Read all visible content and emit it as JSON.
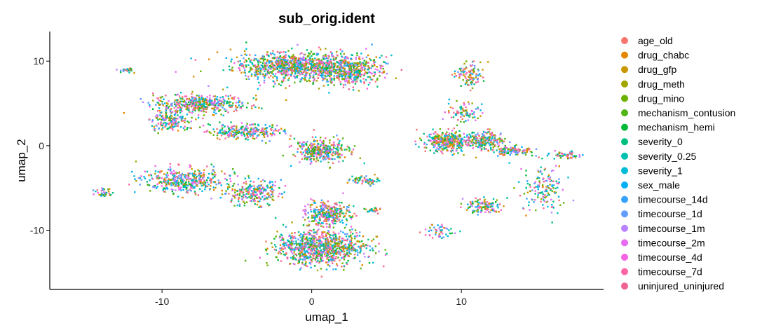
{
  "chart_data": {
    "type": "scatter",
    "title": "sub_orig.ident",
    "xlabel": "umap_1",
    "ylabel": "umap_2",
    "xlim": [
      -17.5,
      19.5
    ],
    "ylim": [
      -17,
      13.5
    ],
    "x_ticks": [
      -10,
      0,
      10
    ],
    "y_ticks": [
      10,
      0,
      -10
    ],
    "grid": false,
    "legend_position": "right",
    "legend": [
      {
        "name": "age_old",
        "color": "#F8766D"
      },
      {
        "name": "drug_chabc",
        "color": "#E58700"
      },
      {
        "name": "drug_gfp",
        "color": "#C99800"
      },
      {
        "name": "drug_meth",
        "color": "#A3A500"
      },
      {
        "name": "drug_mino",
        "color": "#6BB100"
      },
      {
        "name": "mechanism_contusion",
        "color": "#52B415"
      },
      {
        "name": "mechanism_hemi",
        "color": "#00BA38"
      },
      {
        "name": "severity_0",
        "color": "#00BF7D"
      },
      {
        "name": "severity_0.25",
        "color": "#00C0AF"
      },
      {
        "name": "severity_1",
        "color": "#00BCD8"
      },
      {
        "name": "sex_male",
        "color": "#00B0F6"
      },
      {
        "name": "timecourse_14d",
        "color": "#35A2FF"
      },
      {
        "name": "timecourse_1d",
        "color": "#619CFF"
      },
      {
        "name": "timecourse_1m",
        "color": "#B983FF"
      },
      {
        "name": "timecourse_2m",
        "color": "#E76BF3"
      },
      {
        "name": "timecourse_4d",
        "color": "#F564E3"
      },
      {
        "name": "timecourse_7d",
        "color": "#FF67A4"
      },
      {
        "name": "uninjured_uninjured",
        "color": "#F0628F"
      }
    ],
    "clusters": [
      {
        "center": [
          -1.5,
          9.5
        ],
        "spread": [
          3.8,
          1.6
        ],
        "n": 900
      },
      {
        "center": [
          2.5,
          9.0
        ],
        "spread": [
          2.2,
          1.8
        ],
        "n": 500
      },
      {
        "center": [
          -7.5,
          5.0
        ],
        "spread": [
          3.0,
          1.2
        ],
        "n": 450
      },
      {
        "center": [
          -4.5,
          1.8
        ],
        "spread": [
          2.5,
          0.9
        ],
        "n": 250
      },
      {
        "center": [
          -9.5,
          3.0
        ],
        "spread": [
          1.2,
          1.2
        ],
        "n": 160
      },
      {
        "center": [
          -8.5,
          -4.0
        ],
        "spread": [
          2.8,
          1.4
        ],
        "n": 400
      },
      {
        "center": [
          -4.0,
          -5.5
        ],
        "spread": [
          2.0,
          1.4
        ],
        "n": 250
      },
      {
        "center": [
          0.5,
          -12.0
        ],
        "spread": [
          3.0,
          2.0
        ],
        "n": 900
      },
      {
        "center": [
          1.0,
          -8.0
        ],
        "spread": [
          1.5,
          1.5
        ],
        "n": 300
      },
      {
        "center": [
          0.6,
          -0.5
        ],
        "spread": [
          1.8,
          1.3
        ],
        "n": 350
      },
      {
        "center": [
          3.5,
          -4.0
        ],
        "spread": [
          1.0,
          0.5
        ],
        "n": 70
      },
      {
        "center": [
          4.0,
          -7.5
        ],
        "spread": [
          0.5,
          0.3
        ],
        "n": 25
      },
      {
        "center": [
          -14.0,
          -5.5
        ],
        "spread": [
          0.7,
          0.5
        ],
        "n": 35
      },
      {
        "center": [
          -12.5,
          9.0
        ],
        "spread": [
          0.5,
          0.3
        ],
        "n": 25
      },
      {
        "center": [
          9.0,
          0.5
        ],
        "spread": [
          1.5,
          1.2
        ],
        "n": 350
      },
      {
        "center": [
          11.5,
          0.8
        ],
        "spread": [
          1.2,
          1.0
        ],
        "n": 200
      },
      {
        "center": [
          13.5,
          -0.5
        ],
        "spread": [
          1.2,
          0.6
        ],
        "n": 120
      },
      {
        "center": [
          10.5,
          8.5
        ],
        "spread": [
          1.0,
          1.5
        ],
        "n": 100
      },
      {
        "center": [
          10.0,
          4.0
        ],
        "spread": [
          1.3,
          1.0
        ],
        "n": 80
      },
      {
        "center": [
          11.5,
          -7.0
        ],
        "spread": [
          1.2,
          0.9
        ],
        "n": 120
      },
      {
        "center": [
          15.5,
          -5.0
        ],
        "spread": [
          1.5,
          3.0
        ],
        "n": 150
      },
      {
        "center": [
          17.0,
          -1.0
        ],
        "spread": [
          0.8,
          0.4
        ],
        "n": 60
      },
      {
        "center": [
          8.5,
          -10.0
        ],
        "spread": [
          1.0,
          0.8
        ],
        "n": 50
      }
    ]
  }
}
